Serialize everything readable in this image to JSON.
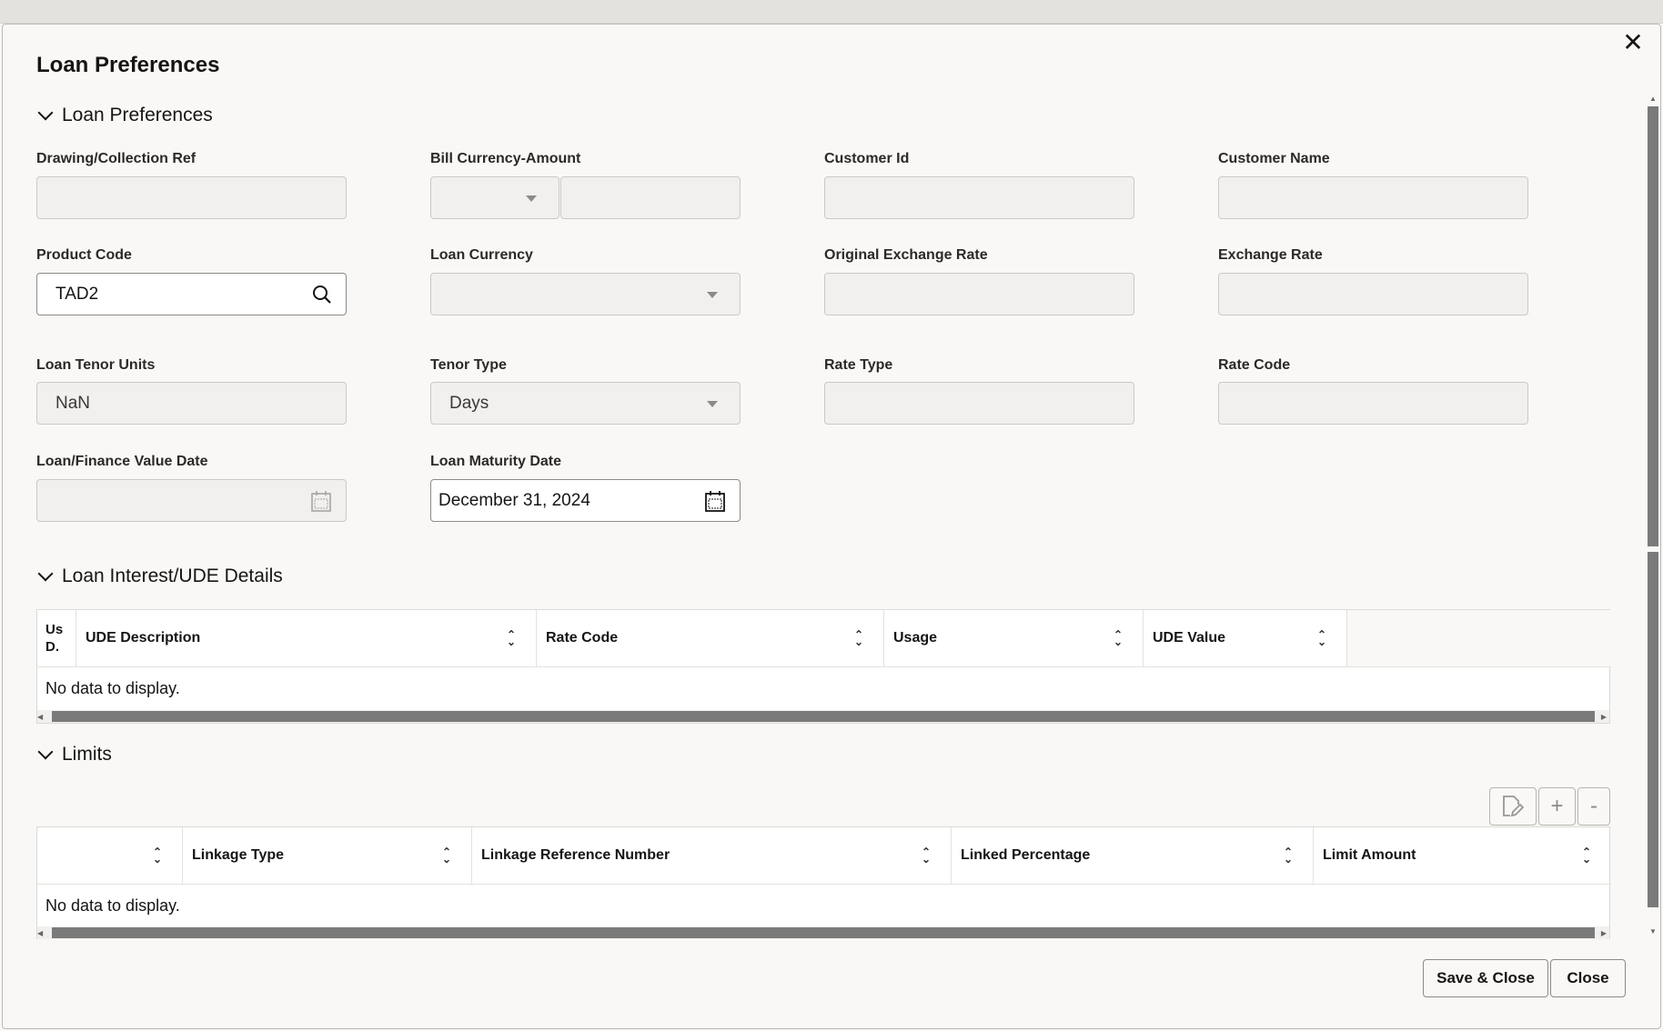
{
  "dialog": {
    "title": "Loan Preferences",
    "close_icon": "close-icon"
  },
  "sections": {
    "loan_preferences": "Loan Preferences",
    "interest": "Loan Interest/UDE Details",
    "limits": "Limits"
  },
  "fields": {
    "drawing_ref": {
      "label": "Drawing/Collection Ref",
      "value": ""
    },
    "bill_currency_amount": {
      "label": "Bill Currency-Amount",
      "currency": "",
      "amount": ""
    },
    "customer_id": {
      "label": "Customer Id",
      "value": ""
    },
    "customer_name": {
      "label": "Customer Name",
      "value": ""
    },
    "product_code": {
      "label": "Product Code",
      "value": "TAD2"
    },
    "loan_currency": {
      "label": "Loan Currency",
      "value": ""
    },
    "original_exchange_rate": {
      "label": "Original Exchange Rate",
      "value": ""
    },
    "exchange_rate": {
      "label": "Exchange Rate",
      "value": ""
    },
    "loan_tenor_units": {
      "label": "Loan Tenor Units",
      "value": "NaN"
    },
    "tenor_type": {
      "label": "Tenor Type",
      "value": "Days"
    },
    "rate_type": {
      "label": "Rate Type",
      "value": ""
    },
    "rate_code": {
      "label": "Rate Code",
      "value": ""
    },
    "value_date": {
      "label": "Loan/Finance Value Date",
      "value": ""
    },
    "maturity_date": {
      "label": "Loan Maturity Date",
      "value": "December 31, 2024"
    }
  },
  "interest_table": {
    "columns": [
      "Us D.",
      "UDE Description",
      "Rate Code",
      "Usage",
      "UDE Value"
    ],
    "empty": "No data to display."
  },
  "limits_table": {
    "columns": [
      "",
      "Linkage Type",
      "Linkage Reference Number",
      "Linked Percentage",
      "Limit Amount"
    ],
    "empty": "No data to display.",
    "toolbar": {
      "edit": "edit-document-icon",
      "add": "+",
      "remove": "-"
    }
  },
  "footer": {
    "save_close": "Save & Close",
    "close": "Close"
  }
}
